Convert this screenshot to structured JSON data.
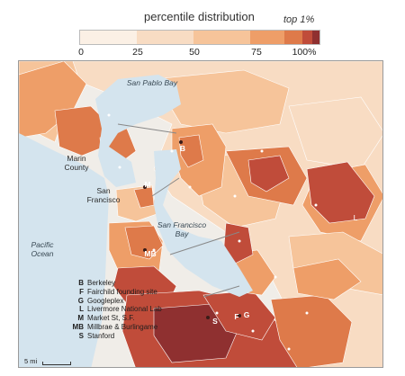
{
  "legend": {
    "title": "percentile distribution",
    "top_label": "top 1%",
    "ticks": [
      "0",
      "25",
      "50",
      "75",
      "100%"
    ],
    "colors": [
      "#fbf0e5",
      "#f8dcc3",
      "#f6c49a",
      "#ee9e68",
      "#de7a4a",
      "#c04c3a",
      "#8f3030"
    ]
  },
  "places": {
    "san_pablo_bay": "San Pablo Bay",
    "marin_county": "Marin County",
    "san_francisco": "San Francisco",
    "san_francisco_bay": "San Francisco Bay",
    "pacific_ocean": "Pacific Ocean",
    "livermore_letter": "L"
  },
  "markers": {
    "berkeley": "B",
    "market_st": "M",
    "millbrae": "MB",
    "stanford": "S",
    "fairchild": "F",
    "googleplex": "G"
  },
  "key": [
    {
      "code": "B",
      "name": "Berkeley"
    },
    {
      "code": "F",
      "name": "Fairchild founding site"
    },
    {
      "code": "G",
      "name": "Googleplex"
    },
    {
      "code": "L",
      "name": "Livermore National Lab"
    },
    {
      "code": "M",
      "name": "Market St, S.F."
    },
    {
      "code": "MB",
      "name": "Millbrae & Burlingame"
    },
    {
      "code": "S",
      "name": "Stanford"
    }
  ],
  "scale": {
    "label": "5 mi"
  },
  "colors": {
    "water": "#d4e4ee",
    "land_outside": "#f0ede8",
    "border": "#ffffff"
  }
}
